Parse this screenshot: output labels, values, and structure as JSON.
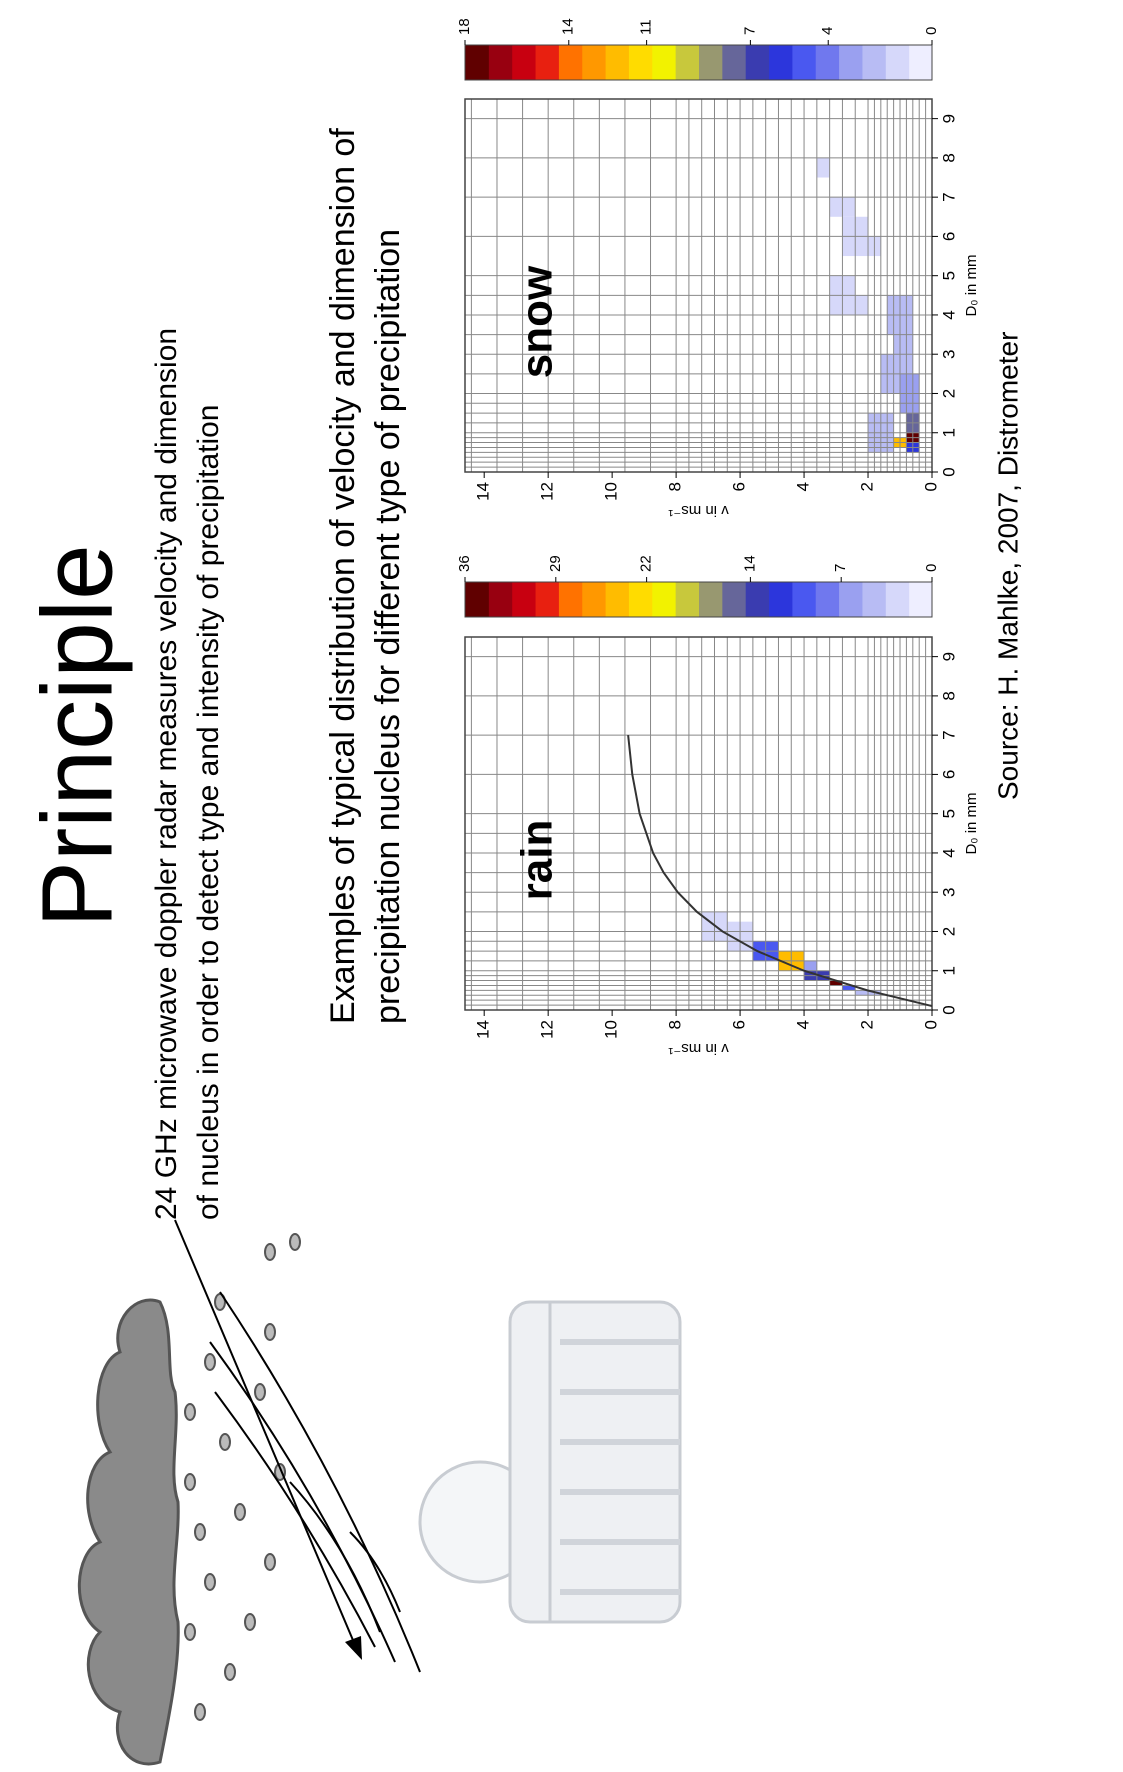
{
  "slide": {
    "title": "Principle",
    "description": [
      "24 GHz microwave doppler radar measures velocity and dimension",
      "of nucleus in order to detect type and intensity of precipitation"
    ],
    "examples_heading": [
      "Examples of typical distribution of velocity and dimension of",
      "precipitation nucleus for different type of precipitation"
    ],
    "source": "Source: H. Mahlke, 2007, Distrometer"
  },
  "chart_data": [
    {
      "type": "heatmap",
      "label": "rain",
      "xlabel": "D₀ in mm",
      "ylabel": "v in ms⁻¹",
      "xlim": [
        0,
        9.5
      ],
      "ylim": [
        0,
        14.6
      ],
      "xticks": [
        0,
        1,
        2,
        3,
        4,
        5,
        6,
        7,
        8,
        9
      ],
      "yticks": [
        0,
        2,
        4,
        6,
        8,
        10,
        12,
        14
      ],
      "xgrid": [
        0.125,
        0.25,
        0.375,
        0.5,
        0.625,
        0.75,
        0.875,
        1,
        1.25,
        1.5,
        1.75,
        2,
        2.5,
        3,
        3.5,
        4,
        4.5,
        5,
        6,
        7,
        8,
        9
      ],
      "ygrid": [
        0.2,
        0.4,
        0.6,
        0.8,
        1,
        1.2,
        1.4,
        1.6,
        1.8,
        2,
        2.4,
        2.8,
        3.2,
        3.6,
        4,
        4.4,
        4.8,
        5.2,
        5.6,
        6,
        6.4,
        6.8,
        7.2,
        7.6,
        8,
        8.8,
        9.6,
        10.4,
        11.2,
        12,
        12.8,
        13.6,
        14.4
      ],
      "clim": [
        0,
        36
      ],
      "cticks": [
        0,
        7,
        14,
        22,
        29,
        36
      ],
      "colorscale": [
        "#eeeeff",
        "#d6d8fa",
        "#b8bcf4",
        "#9aa0f0",
        "#7078ee",
        "#4a58f0",
        "#2c36dc",
        "#3a3cb0",
        "#66669a",
        "#989870",
        "#c8c83c",
        "#f2f200",
        "#ffdc00",
        "#ffbc00",
        "#ff9800",
        "#ff7200",
        "#e82010",
        "#c80010",
        "#980010",
        "#600000"
      ],
      "cells": [
        {
          "x": [
            1.75,
            2.5
          ],
          "y": [
            6.4,
            7.2
          ],
          "value": 2
        },
        {
          "x": [
            1.5,
            2.25
          ],
          "y": [
            5.6,
            6.4
          ],
          "value": 3
        },
        {
          "x": [
            1.25,
            1.75
          ],
          "y": [
            4.8,
            5.6
          ],
          "value": 9
        },
        {
          "x": [
            1,
            1.5
          ],
          "y": [
            4,
            4.8
          ],
          "value": 25
        },
        {
          "x": [
            0.75,
            1
          ],
          "y": [
            3.2,
            4
          ],
          "value": 13
        },
        {
          "x": [
            0.625,
            0.75
          ],
          "y": [
            2.8,
            3.2
          ],
          "value": 36
        },
        {
          "x": [
            0.5,
            0.625
          ],
          "y": [
            2.4,
            2.8
          ],
          "value": 10
        },
        {
          "x": [
            0.375,
            0.5
          ],
          "y": [
            1.6,
            2.4
          ],
          "value": 5
        },
        {
          "x": [
            1,
            1.25
          ],
          "y": [
            3.6,
            4
          ],
          "value": 7
        }
      ],
      "curve": {
        "x": [
          0.1,
          0.5,
          1,
          1.5,
          2,
          2.5,
          3,
          3.5,
          4,
          5,
          6,
          7
        ],
        "y": [
          0,
          2.02,
          4,
          5.46,
          6.55,
          7.35,
          7.95,
          8.39,
          8.72,
          9.14,
          9.37,
          9.5
        ]
      }
    },
    {
      "type": "heatmap",
      "label": "snow",
      "xlabel": "D₀ in mm",
      "ylabel": "v in ms⁻¹",
      "xlim": [
        0,
        9.5
      ],
      "ylim": [
        0,
        14.6
      ],
      "xticks": [
        0,
        1,
        2,
        3,
        4,
        5,
        6,
        7,
        8,
        9
      ],
      "yticks": [
        0,
        2,
        4,
        6,
        8,
        10,
        12,
        14
      ],
      "xgrid": [
        0.125,
        0.25,
        0.375,
        0.5,
        0.625,
        0.75,
        0.875,
        1,
        1.25,
        1.5,
        1.75,
        2,
        2.5,
        3,
        3.5,
        4,
        4.5,
        5,
        6,
        7,
        8,
        9
      ],
      "ygrid": [
        0.2,
        0.4,
        0.6,
        0.8,
        1,
        1.2,
        1.4,
        1.6,
        1.8,
        2,
        2.4,
        2.8,
        3.2,
        3.6,
        4,
        4.4,
        4.8,
        5.2,
        5.6,
        6,
        6.4,
        6.8,
        7.2,
        7.6,
        8,
        8.8,
        9.6,
        10.4,
        11.2,
        12,
        12.8,
        13.6,
        14.4
      ],
      "clim": [
        0,
        18
      ],
      "cticks": [
        0,
        4,
        7,
        11,
        14,
        18
      ],
      "colorscale": [
        "#eeeeff",
        "#d6d8fa",
        "#b8bcf4",
        "#9aa0f0",
        "#7078ee",
        "#4a58f0",
        "#2c36dc",
        "#3a3cb0",
        "#66669a",
        "#989870",
        "#c8c83c",
        "#f2f200",
        "#ffdc00",
        "#ffbc00",
        "#ff9800",
        "#ff7200",
        "#e82010",
        "#c80010",
        "#980010",
        "#600000"
      ],
      "cells": [
        {
          "x": [
            0.75,
            1
          ],
          "y": [
            0.4,
            0.8
          ],
          "value": 18
        },
        {
          "x": [
            0.625,
            0.875
          ],
          "y": [
            0.8,
            1.2
          ],
          "value": 12
        },
        {
          "x": [
            1,
            1.5
          ],
          "y": [
            0.4,
            0.8
          ],
          "value": 8
        },
        {
          "x": [
            0.5,
            0.75
          ],
          "y": [
            0.4,
            0.8
          ],
          "value": 6
        },
        {
          "x": [
            1.5,
            2.5
          ],
          "y": [
            0.4,
            1
          ],
          "value": 3
        },
        {
          "x": [
            2.5,
            3.5
          ],
          "y": [
            0.6,
            1.2
          ],
          "value": 2
        },
        {
          "x": [
            3.5,
            4.5
          ],
          "y": [
            0.6,
            1.4
          ],
          "value": 2
        },
        {
          "x": [
            0.5,
            1.5
          ],
          "y": [
            1.2,
            2
          ],
          "value": 2
        },
        {
          "x": [
            2,
            3
          ],
          "y": [
            1,
            1.6
          ],
          "value": 2
        },
        {
          "x": [
            4,
            4.5
          ],
          "y": [
            2,
            3.2
          ],
          "value": 1
        },
        {
          "x": [
            4.5,
            5
          ],
          "y": [
            2.4,
            3.2
          ],
          "value": 1
        },
        {
          "x": [
            5.5,
            6
          ],
          "y": [
            1.6,
            2.8
          ],
          "value": 1
        },
        {
          "x": [
            6,
            6.5
          ],
          "y": [
            2,
            2.8
          ],
          "value": 1
        },
        {
          "x": [
            6.5,
            7
          ],
          "y": [
            2.4,
            3.2
          ],
          "value": 1
        },
        {
          "x": [
            7.5,
            8
          ],
          "y": [
            3.2,
            3.6
          ],
          "value": 1
        }
      ]
    }
  ]
}
